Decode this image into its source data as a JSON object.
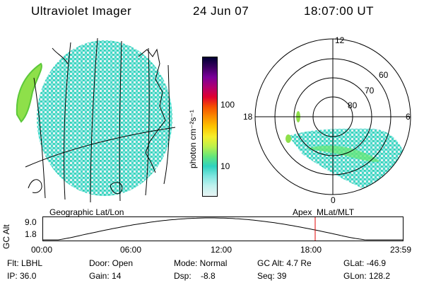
{
  "header": {
    "instrument": "Ultraviolet Imager",
    "date": "24 Jun 07",
    "time": "18:07:00 UT"
  },
  "geo_panel": {
    "label": "Geographic Lat/Lon"
  },
  "polar_panel": {
    "label": "Apex  MLat/MLT",
    "mlt_labels": {
      "top": "12",
      "left": "18",
      "right": "6",
      "bottom": "0"
    },
    "lat_labels": [
      "60",
      "70",
      "80"
    ]
  },
  "colorbar": {
    "unit": "photon cm⁻²s⁻¹",
    "tick_labels": [
      "100",
      "10"
    ],
    "colors": [
      "#000033",
      "#3a0060",
      "#7a0099",
      "#b00070",
      "#e00030",
      "#f55000",
      "#fa8c00",
      "#fcc400",
      "#f6ee2a",
      "#bdf04a",
      "#64e67a",
      "#2ed2c0",
      "#7ee6e0",
      "#c0f2ee",
      "#e8f4f4"
    ]
  },
  "altitude_plot": {
    "ylabel": "GC Alt",
    "yticks": [
      "9.0",
      "1.8"
    ],
    "xticks": [
      "00:00",
      "06:00",
      "12:00",
      "18:00",
      "23:59"
    ],
    "current_time_hours": 18.117,
    "marker_color": "#e00000"
  },
  "info": {
    "filter": "Flt: LBHL",
    "ip": "IP: 36.0",
    "door": "Door: Open",
    "gain": "Gain: 14",
    "mode": "Mode: Normal",
    "dsp": "Dsp:    -8.8",
    "gc_alt": "GC Alt: 4.7 Re",
    "seq": "Seq: 39",
    "glat": "GLat: -46.9",
    "glon": "GLon: 128.2"
  }
}
